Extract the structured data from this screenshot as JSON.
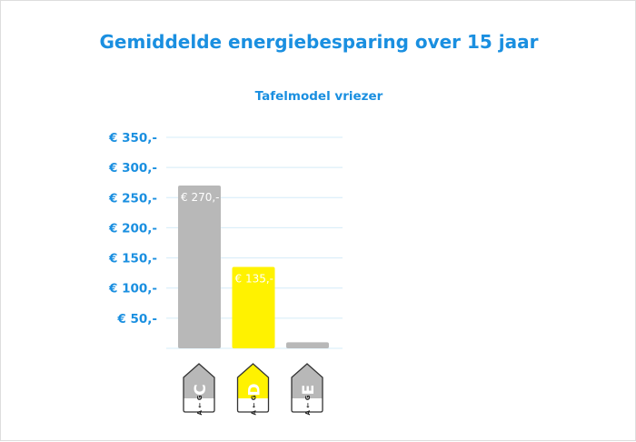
{
  "chart_data": {
    "type": "bar",
    "title": "Gemiddelde energiebesparing over 15 jaar",
    "subtitle": "Tafelmodel vriezer",
    "xlabel": "",
    "ylabel": "",
    "ylim": [
      0,
      350
    ],
    "yticks": [
      50,
      100,
      150,
      200,
      250,
      300,
      350
    ],
    "ytick_labels": [
      "€ 50,-",
      "€ 100,-",
      "€ 150,-",
      "€ 200,-",
      "€ 250,-",
      "€ 300,-",
      "€ 350,-"
    ],
    "grid": true,
    "categories": [
      "C",
      "D",
      "E"
    ],
    "category_sublabel": "A ← G",
    "values": [
      270,
      135,
      10
    ],
    "data_labels": [
      "€ 270,-",
      "€ 135,-",
      ""
    ],
    "colors": [
      "#b8b8b8",
      "#fff200",
      "#b8b8b8"
    ],
    "label_colors": [
      "#b8b8b8",
      "#fff200",
      "#b8b8b8"
    ]
  },
  "colors": {
    "accent": "#1a8fe0",
    "grid": "#d4ecf8"
  }
}
